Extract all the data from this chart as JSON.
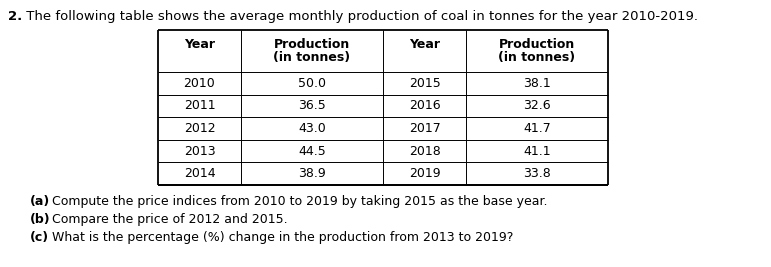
{
  "title_bold": "2.",
  "title_text": " The following table shows the average monthly production of coal in tonnes for the year 2010-2019.",
  "col_headers_line1": [
    "Year",
    "Production",
    "Year",
    "Production"
  ],
  "col_headers_line2": [
    "",
    "(in tonnes)",
    "",
    "(in tonnes)"
  ],
  "left_years": [
    "2010",
    "2011",
    "2012",
    "2013",
    "2014"
  ],
  "left_values": [
    "50.0",
    "36.5",
    "43.0",
    "44.5",
    "38.9"
  ],
  "right_years": [
    "2015",
    "2016",
    "2017",
    "2018",
    "2019"
  ],
  "right_values": [
    "38.1",
    "32.6",
    "41.7",
    "41.1",
    "33.8"
  ],
  "qa_bold": "(a)",
  "qa_rest": " Compute the price indices from 2010 to 2019 by taking 2015 as the base year.",
  "qb_bold": "(b)",
  "qb_rest": " Compare the price of 2012 and 2015.",
  "qc_bold": "(c)",
  "qc_rest": " What is the percentage (%) change in the production from 2013 to 2019?",
  "bg_color": "#ffffff",
  "title_fontsize": 9.5,
  "table_fontsize": 9.0,
  "question_fontsize": 9.0
}
